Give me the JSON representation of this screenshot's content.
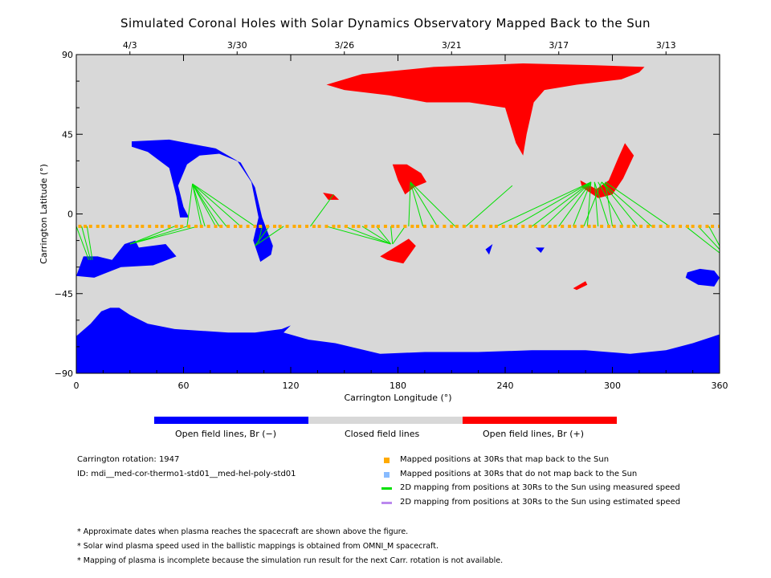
{
  "title": "Simulated Coronal Holes with Solar Dynamics Observatory Mapped Back to the Sun",
  "chart_data": {
    "type": "map",
    "xlabel": "Carrington Longitude (°)",
    "ylabel": "Carrington Latitude (°)",
    "xlim": [
      0,
      360
    ],
    "ylim": [
      -90,
      90
    ],
    "x_ticks": [
      0,
      60,
      120,
      180,
      240,
      300,
      360
    ],
    "y_ticks": [
      90,
      45,
      0,
      -45,
      -90
    ],
    "top_dates": [
      {
        "label": "4/3",
        "lon": 30
      },
      {
        "label": "3/30",
        "lon": 90
      },
      {
        "label": "3/26",
        "lon": 150
      },
      {
        "label": "3/21",
        "lon": 210
      },
      {
        "label": "3/17",
        "lon": 270
      },
      {
        "label": "3/13",
        "lon": 330
      }
    ],
    "colors": {
      "background": "#d8d8d8",
      "open_negative": "#0000ff",
      "open_positive": "#ff0000",
      "mapped": "#ffaa00",
      "line_measured": "#00e000",
      "line_estimated": "#bb88ee",
      "not_mapped": "#88bbff"
    },
    "regions": [
      {
        "polarity": "negative",
        "points": [
          [
            0,
            -69
          ],
          [
            8,
            -62
          ],
          [
            14,
            -55
          ],
          [
            19,
            -53
          ],
          [
            24,
            -53
          ],
          [
            30,
            -57
          ],
          [
            40,
            -62
          ],
          [
            55,
            -65
          ],
          [
            70,
            -66
          ],
          [
            85,
            -67
          ],
          [
            100,
            -67
          ],
          [
            115,
            -65
          ],
          [
            120,
            -63
          ],
          [
            116,
            -67
          ],
          [
            130,
            -71
          ],
          [
            145,
            -73
          ],
          [
            170,
            -79
          ],
          [
            195,
            -78
          ],
          [
            225,
            -78
          ],
          [
            255,
            -77
          ],
          [
            285,
            -77
          ],
          [
            310,
            -79
          ],
          [
            330,
            -77
          ],
          [
            345,
            -73
          ],
          [
            360,
            -68
          ],
          [
            360,
            -90
          ],
          [
            0,
            -90
          ]
        ]
      },
      {
        "polarity": "negative",
        "points": [
          [
            0,
            -35
          ],
          [
            4,
            -24
          ],
          [
            12,
            -24
          ],
          [
            20,
            -26
          ],
          [
            27,
            -17
          ],
          [
            33,
            -15
          ],
          [
            35,
            -19
          ],
          [
            50,
            -17
          ],
          [
            56,
            -24
          ],
          [
            43,
            -29
          ],
          [
            25,
            -30
          ],
          [
            10,
            -36
          ]
        ]
      },
      {
        "polarity": "negative",
        "points": [
          [
            31,
            41
          ],
          [
            52,
            42
          ],
          [
            78,
            37
          ],
          [
            90,
            30
          ],
          [
            98,
            18
          ],
          [
            102,
            -2
          ],
          [
            99,
            -15
          ],
          [
            103,
            -27
          ],
          [
            109,
            -23
          ],
          [
            110,
            -18
          ],
          [
            104,
            -2
          ],
          [
            100,
            15
          ],
          [
            92,
            29
          ],
          [
            80,
            34
          ],
          [
            69,
            33
          ],
          [
            62,
            28
          ],
          [
            57,
            16
          ],
          [
            60,
            4
          ],
          [
            63,
            -2
          ],
          [
            58,
            -2
          ],
          [
            56,
            10
          ],
          [
            52,
            26
          ],
          [
            40,
            35
          ],
          [
            31,
            38
          ]
        ]
      },
      {
        "polarity": "negative",
        "points": [
          [
            342,
            -33
          ],
          [
            349,
            -31
          ],
          [
            357,
            -32
          ],
          [
            360,
            -36
          ],
          [
            357,
            -41
          ],
          [
            348,
            -40
          ],
          [
            341,
            -36
          ]
        ]
      },
      {
        "polarity": "negative",
        "points": [
          [
            229,
            -20
          ],
          [
            233,
            -17
          ],
          [
            231,
            -23
          ]
        ]
      },
      {
        "polarity": "negative",
        "points": [
          [
            257,
            -19
          ],
          [
            262,
            -19
          ],
          [
            260,
            -22
          ]
        ]
      },
      {
        "polarity": "positive",
        "points": [
          [
            140,
            73
          ],
          [
            160,
            79
          ],
          [
            200,
            83
          ],
          [
            250,
            85
          ],
          [
            290,
            84
          ],
          [
            318,
            83
          ],
          [
            315,
            80
          ],
          [
            305,
            76
          ],
          [
            280,
            73
          ],
          [
            262,
            70
          ],
          [
            256,
            63
          ],
          [
            252,
            45
          ],
          [
            250,
            33
          ],
          [
            246,
            40
          ],
          [
            240,
            60
          ],
          [
            220,
            63
          ],
          [
            196,
            63
          ],
          [
            175,
            67
          ],
          [
            150,
            70
          ]
        ]
      },
      {
        "polarity": "positive",
        "points": [
          [
            177,
            28
          ],
          [
            185,
            28
          ],
          [
            193,
            23
          ],
          [
            196,
            18
          ],
          [
            189,
            15
          ],
          [
            184,
            11
          ],
          [
            180,
            19
          ]
        ]
      },
      {
        "polarity": "positive",
        "points": [
          [
            282,
            19
          ],
          [
            291,
            14
          ],
          [
            298,
            19
          ],
          [
            303,
            31
          ],
          [
            307,
            40
          ],
          [
            312,
            33
          ],
          [
            306,
            20
          ],
          [
            300,
            11
          ],
          [
            292,
            9
          ],
          [
            283,
            15
          ]
        ]
      },
      {
        "polarity": "positive",
        "points": [
          [
            170,
            -24
          ],
          [
            178,
            -19
          ],
          [
            186,
            -14
          ],
          [
            190,
            -18
          ],
          [
            183,
            -28
          ],
          [
            174,
            -26
          ]
        ]
      },
      {
        "polarity": "positive",
        "points": [
          [
            138,
            12
          ],
          [
            144,
            11
          ],
          [
            147,
            8
          ],
          [
            141,
            8
          ]
        ]
      },
      {
        "polarity": "positive",
        "points": [
          [
            278,
            -42
          ],
          [
            285,
            -38
          ],
          [
            286,
            -40
          ],
          [
            280,
            -43
          ]
        ]
      }
    ],
    "mapped_longitudes": [
      2,
      5,
      8,
      12,
      15,
      19,
      23,
      26,
      30,
      34,
      37,
      41,
      45,
      48,
      52,
      56,
      59,
      63,
      67,
      70,
      74,
      78,
      81,
      85,
      89,
      92,
      96,
      100,
      103,
      107,
      111,
      114,
      118,
      122,
      125,
      129,
      133,
      136,
      140,
      144,
      147,
      151,
      155,
      158,
      162,
      166,
      169,
      173,
      177,
      180,
      184,
      188,
      191,
      195,
      199,
      202,
      206,
      210,
      213,
      217,
      221,
      224,
      228,
      232,
      235,
      239,
      243,
      246,
      250,
      254,
      257,
      261,
      265,
      268,
      272,
      276,
      279,
      283,
      287,
      290,
      294,
      298,
      301,
      305,
      309,
      312,
      316,
      320,
      323,
      327,
      331,
      334,
      338,
      342,
      345,
      349,
      353,
      356,
      360
    ],
    "mapped_latitude": -7,
    "mapping_lines": [
      {
        "from": [
          0,
          -7
        ],
        "to": [
          7,
          -26
        ]
      },
      {
        "from": [
          3,
          -7
        ],
        "to": [
          8,
          -26
        ]
      },
      {
        "from": [
          6,
          -7
        ],
        "to": [
          9,
          -26
        ]
      },
      {
        "from": [
          30,
          -17
        ],
        "to": [
          55,
          -7
        ]
      },
      {
        "from": [
          30,
          -17
        ],
        "to": [
          62,
          -7
        ]
      },
      {
        "from": [
          30,
          -17
        ],
        "to": [
          68,
          -7
        ]
      },
      {
        "from": [
          65,
          17
        ],
        "to": [
          62,
          -7
        ]
      },
      {
        "from": [
          65,
          17
        ],
        "to": [
          70,
          -7
        ]
      },
      {
        "from": [
          65,
          17
        ],
        "to": [
          78,
          -7
        ]
      },
      {
        "from": [
          65,
          17
        ],
        "to": [
          84,
          -7
        ]
      },
      {
        "from": [
          65,
          17
        ],
        "to": [
          92,
          -7
        ]
      },
      {
        "from": [
          65,
          17
        ],
        "to": [
          100,
          -7
        ]
      },
      {
        "from": [
          65,
          17
        ],
        "to": [
          72,
          -7
        ]
      },
      {
        "from": [
          65,
          17
        ],
        "to": [
          80,
          -7
        ]
      },
      {
        "from": [
          100,
          -18
        ],
        "to": [
          108,
          -7
        ]
      },
      {
        "from": [
          100,
          -18
        ],
        "to": [
          116,
          -7
        ]
      },
      {
        "from": [
          102,
          -16
        ],
        "to": [
          104,
          -7
        ]
      },
      {
        "from": [
          131,
          -7
        ],
        "to": [
          144,
          11
        ]
      },
      {
        "from": [
          140,
          -7
        ],
        "to": [
          176,
          -17
        ]
      },
      {
        "from": [
          150,
          -7
        ],
        "to": [
          176,
          -17
        ]
      },
      {
        "from": [
          160,
          -7
        ],
        "to": [
          176,
          -17
        ]
      },
      {
        "from": [
          168,
          -7
        ],
        "to": [
          176,
          -17
        ]
      },
      {
        "from": [
          176,
          -7
        ],
        "to": [
          177,
          -17
        ]
      },
      {
        "from": [
          184,
          -7
        ],
        "to": [
          177,
          -17
        ]
      },
      {
        "from": [
          187,
          18
        ],
        "to": [
          186,
          -7
        ]
      },
      {
        "from": [
          187,
          18
        ],
        "to": [
          194,
          -7
        ]
      },
      {
        "from": [
          187,
          18
        ],
        "to": [
          202,
          -7
        ]
      },
      {
        "from": [
          187,
          18
        ],
        "to": [
          212,
          -7
        ]
      },
      {
        "from": [
          218,
          -7
        ],
        "to": [
          244,
          16
        ]
      },
      {
        "from": [
          288,
          18
        ],
        "to": [
          235,
          -7
        ]
      },
      {
        "from": [
          288,
          18
        ],
        "to": [
          245,
          -7
        ]
      },
      {
        "from": [
          288,
          18
        ],
        "to": [
          255,
          -7
        ]
      },
      {
        "from": [
          288,
          18
        ],
        "to": [
          262,
          -7
        ]
      },
      {
        "from": [
          288,
          18
        ],
        "to": [
          270,
          -7
        ]
      },
      {
        "from": [
          288,
          18
        ],
        "to": [
          278,
          -7
        ]
      },
      {
        "from": [
          288,
          18
        ],
        "to": [
          286,
          -7
        ]
      },
      {
        "from": [
          290,
          18
        ],
        "to": [
          292,
          -7
        ]
      },
      {
        "from": [
          290,
          18
        ],
        "to": [
          298,
          -7
        ]
      },
      {
        "from": [
          292,
          18
        ],
        "to": [
          306,
          -7
        ]
      },
      {
        "from": [
          294,
          18
        ],
        "to": [
          314,
          -7
        ]
      },
      {
        "from": [
          294,
          18
        ],
        "to": [
          322,
          -7
        ]
      },
      {
        "from": [
          296,
          18
        ],
        "to": [
          332,
          -7
        ]
      },
      {
        "from": [
          296,
          18
        ],
        "to": [
          300,
          -7
        ]
      },
      {
        "from": [
          294,
          18
        ],
        "to": [
          284,
          -7
        ]
      },
      {
        "from": [
          341,
          -7
        ],
        "to": [
          360,
          -22
        ]
      },
      {
        "from": [
          348,
          -7
        ],
        "to": [
          360,
          -20
        ]
      },
      {
        "from": [
          354,
          -7
        ],
        "to": [
          360,
          -18
        ]
      }
    ]
  },
  "legend": {
    "open_neg": "Open field lines, Br (−)",
    "closed": "Closed field lines",
    "open_pos": "Open field lines, Br (+)"
  },
  "info": {
    "rotation": "Carrington rotation: 1947",
    "id": "ID: mdi__med-cor-thermo1-std01__med-hel-poly-std01"
  },
  "symbols": {
    "mapped": "Mapped positions at 30Rs that map back to the Sun",
    "not_mapped": "Mapped positions at 30Rs that do not map back to the Sun",
    "measured": "2D mapping from positions at 30Rs to the Sun using measured speed",
    "estimated": "2D mapping from positions at 30Rs to the Sun using estimated speed"
  },
  "notes": {
    "n1": "* Approximate dates when plasma reaches the spacecraft are shown above the figure.",
    "n2": "* Solar wind plasma speed used in the ballistic mappings is obtained from OMNI_M spacecraft.",
    "n3": "* Mapping of plasma is incomplete because the simulation run result for the next Carr. rotation is not available."
  }
}
